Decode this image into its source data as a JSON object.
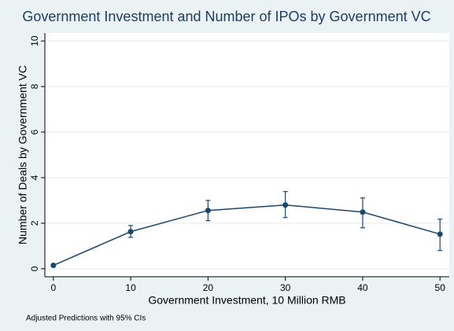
{
  "chart_data": {
    "type": "line",
    "title": "Government Investment and Number of IPOs by Government VC",
    "xlabel": "Government Investment, 10 Million RMB",
    "ylabel": "Number of Deals by Government VC",
    "note": "Adjusted Predictions with 95% CIs",
    "x": [
      0,
      10,
      20,
      30,
      40,
      50
    ],
    "values": [
      0.15,
      1.63,
      2.56,
      2.8,
      2.49,
      1.52
    ],
    "lower": [
      0.1,
      1.38,
      2.11,
      2.25,
      1.8,
      0.8
    ],
    "upper": [
      0.2,
      1.9,
      3.0,
      3.39,
      3.11,
      2.18
    ],
    "color": "#1a476f",
    "xlim": [
      -1.1,
      51.2
    ],
    "ylim": [
      -0.35,
      10.35
    ],
    "xticks": [
      0,
      10,
      20,
      30,
      40,
      50
    ],
    "yticks": [
      0,
      2,
      4,
      6,
      8,
      10
    ],
    "grid": true
  }
}
